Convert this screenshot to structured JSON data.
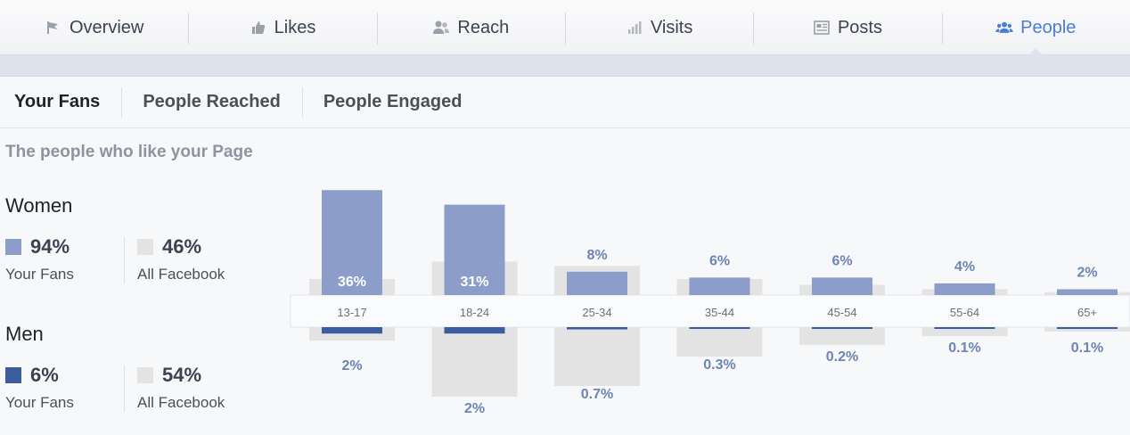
{
  "nav": {
    "tabs": [
      {
        "label": "Overview",
        "icon": "flag-icon"
      },
      {
        "label": "Likes",
        "icon": "thumbs-up-icon"
      },
      {
        "label": "Reach",
        "icon": "users-icon"
      },
      {
        "label": "Visits",
        "icon": "bar-chart-icon"
      },
      {
        "label": "Posts",
        "icon": "posts-icon"
      },
      {
        "label": "People",
        "icon": "people-icon"
      }
    ],
    "active": "People"
  },
  "subnav": {
    "tabs": [
      "Your Fans",
      "People Reached",
      "People Engaged"
    ],
    "active": "Your Fans"
  },
  "subtitle": "The people who like your Page",
  "women": {
    "title": "Women",
    "fans_value": "94%",
    "fans_label": "Your Fans",
    "all_value": "46%",
    "all_label": "All Facebook"
  },
  "men": {
    "title": "Men",
    "fans_value": "6%",
    "fans_label": "Your Fans",
    "all_value": "54%",
    "all_label": "All Facebook"
  },
  "colors": {
    "women_fans": "#8b9dc8",
    "men_fans": "#3b5c9e",
    "all_facebook": "#e3e3e3",
    "active_tab": "#4a7cd6",
    "label_text": "#6d84b4"
  },
  "chart_data": {
    "type": "bar",
    "categories": [
      "13-17",
      "18-24",
      "25-34",
      "35-44",
      "45-54",
      "55-64",
      "65+"
    ],
    "series": [
      {
        "name": "Women",
        "values": [
          36,
          31,
          8,
          6,
          6,
          4,
          2
        ],
        "labels": [
          "36%",
          "31%",
          "8%",
          "6%",
          "6%",
          "4%",
          "2%"
        ]
      },
      {
        "name": "Men",
        "values": [
          2,
          2,
          0.7,
          0.3,
          0.2,
          0.1,
          0.1
        ],
        "labels": [
          "2%",
          "2%",
          "0.7%",
          "0.3%",
          "0.2%",
          "0.1%",
          "0.1%"
        ]
      }
    ],
    "all_facebook": {
      "women": [
        5.5,
        11.5,
        10,
        5.5,
        3.5,
        2,
        1
      ],
      "men": [
        2.5,
        13,
        11,
        5.5,
        3.3,
        1.7,
        0.8
      ]
    },
    "ylim_women": [
      0,
      37
    ],
    "ylim_men": [
      0,
      13
    ]
  }
}
